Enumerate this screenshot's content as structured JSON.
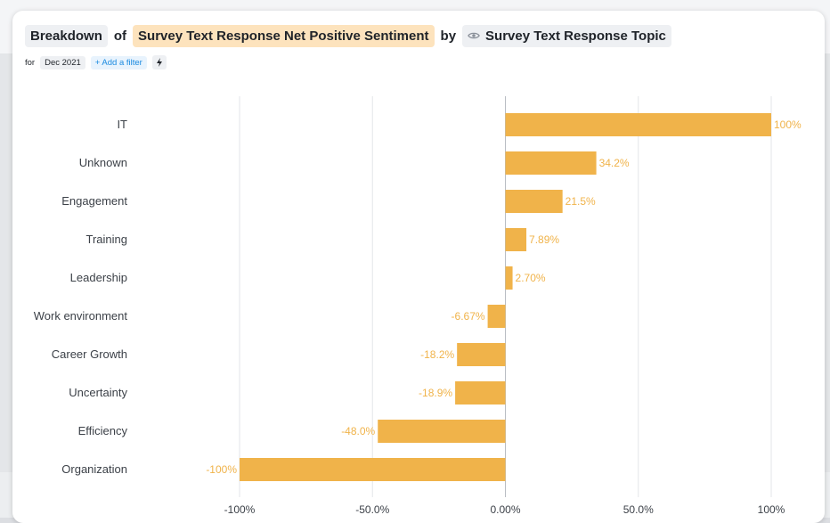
{
  "header": {
    "word_breakdown": "Breakdown",
    "word_of": "of",
    "measure": "Survey Text Response Net Positive Sentiment",
    "word_by": "by",
    "dimension": "Survey Text Response Topic",
    "dimension_icon": "eye-icon"
  },
  "filters": {
    "for_label": "for",
    "date_chip": "Dec 2021",
    "add_filter": "+ Add a filter",
    "bolt_icon": "lightning-icon"
  },
  "colors": {
    "bar": "#f0b34a",
    "measure_pill": "#fde3bd",
    "link": "#1a8ae0"
  },
  "chart_data": {
    "type": "bar",
    "orientation": "horizontal",
    "categories": [
      "IT",
      "Unknown",
      "Engagement",
      "Training",
      "Leadership",
      "Work environment",
      "Career Growth",
      "Uncertainty",
      "Efficiency",
      "Organization"
    ],
    "values": [
      100,
      34.2,
      21.5,
      7.89,
      2.7,
      -6.67,
      -18.2,
      -18.9,
      -48.0,
      -100
    ],
    "value_labels": [
      "100%",
      "34.2%",
      "21.5%",
      "7.89%",
      "2.70%",
      "-6.67%",
      "-18.2%",
      "-18.9%",
      "-48.0%",
      "-100%"
    ],
    "xlim": [
      -100,
      100
    ],
    "x_ticks": [
      -100,
      -50,
      0,
      50,
      100
    ],
    "x_tick_labels": [
      "-100%",
      "-50.0%",
      "0.00%",
      "50.0%",
      "100%"
    ],
    "grid": true,
    "legend": "none"
  }
}
